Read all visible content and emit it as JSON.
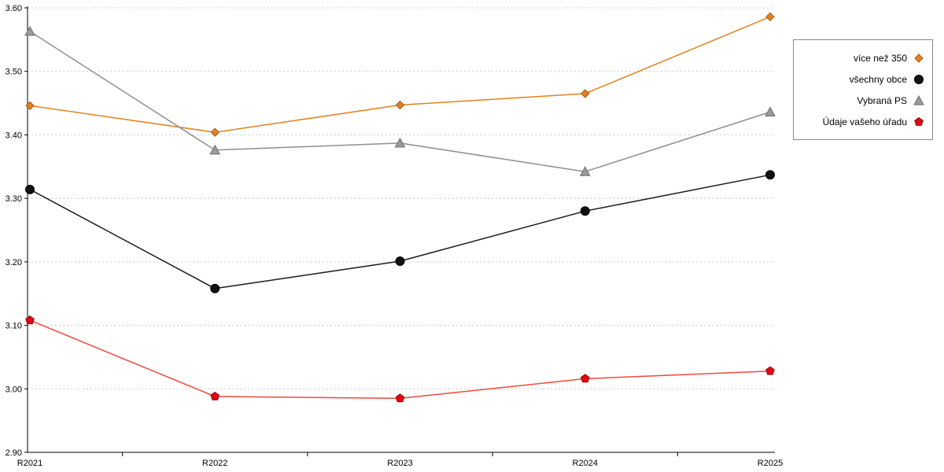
{
  "chart_data": {
    "type": "line",
    "title": "",
    "xlabel": "",
    "ylabel": "",
    "categories": [
      "R2021",
      "R2022",
      "R2023",
      "R2024",
      "R2025"
    ],
    "series": [
      {
        "name": "více než 350",
        "marker": "diamond",
        "color": "#E0821E",
        "marker_fill": "#E0821E",
        "marker_stroke": "#A85A10",
        "values": [
          3.446,
          3.404,
          3.447,
          3.465,
          3.586
        ]
      },
      {
        "name": "všechny obce",
        "marker": "circle",
        "color": "#1a1a1a",
        "marker_fill": "#111111",
        "marker_stroke": "#000000",
        "values": [
          3.314,
          3.158,
          3.201,
          3.28,
          3.337
        ]
      },
      {
        "name": "Vybraná PS",
        "marker": "triangle",
        "color": "#8f8f8f",
        "marker_fill": "#9a9a9a",
        "marker_stroke": "#6e6e6e",
        "values": [
          3.563,
          3.376,
          3.387,
          3.342,
          3.436
        ]
      },
      {
        "name": "Údaje vašeho úřadu",
        "marker": "pentagon",
        "color": "#F0493C",
        "marker_fill": "#E30613",
        "marker_stroke": "#9e0000",
        "values": [
          3.108,
          2.988,
          2.985,
          3.016,
          3.028
        ]
      }
    ],
    "ylim": [
      2.9,
      3.6
    ],
    "y_tick_step": 0.1,
    "y_tick_format": "2-decimals",
    "grid": "horizontal-dotted",
    "grid_color": "#c9c9c9",
    "axis_color": "#000000",
    "legend_position": "top-right",
    "legend_border": "#8a8a8a"
  }
}
